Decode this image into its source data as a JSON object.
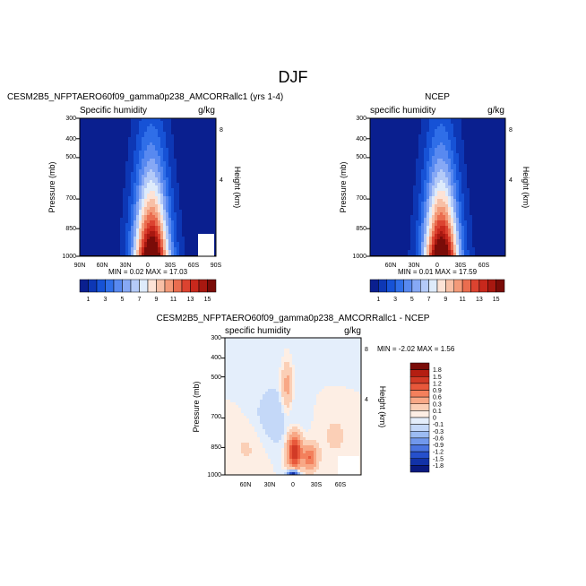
{
  "figure": {
    "title": "DJF",
    "diff_stats_text": "MIN =   -2.02   MAX =    1.56"
  },
  "chart_data": [
    {
      "id": "model",
      "type": "heatmap",
      "title": "CESM2B5_NFPTAERO60f09_gamma0p238_AMCORRallc1 (yrs 1-4)",
      "subtitle_left": "Specific humidity",
      "subtitle_right": "g/kg",
      "ylabel": "Pressure (mb)",
      "ylabel_right": "Height (km)",
      "yticks": [
        "300",
        "400",
        "500",
        "700",
        "850",
        "1000"
      ],
      "yticks_right": [
        "8",
        "4"
      ],
      "xticks": [
        "90N",
        "60N",
        "30N",
        "0",
        "30S",
        "60S",
        "90S"
      ],
      "stats_text": "MIN =    0.02   MAX =   17.03",
      "min": 0.02,
      "max": 17.03,
      "colorbar": {
        "colors": [
          "#0a1f8f",
          "#0d37b5",
          "#1652d6",
          "#2f6ee8",
          "#5889f0",
          "#86a8f5",
          "#b4caf8",
          "#deebfb",
          "#fde3d6",
          "#f8c0a6",
          "#f39a79",
          "#ea6d4f",
          "#dc4330",
          "#c8281c",
          "#a81810",
          "#7a0c08"
        ],
        "labels": [
          "1",
          "3",
          "5",
          "7",
          "9",
          "11",
          "13",
          "15"
        ]
      }
    },
    {
      "id": "ncep",
      "type": "heatmap",
      "title": "NCEP",
      "subtitle_left": "specific humidity",
      "subtitle_right": "g/kg",
      "ylabel": "Pressure (mb)",
      "ylabel_right": "Height (km)",
      "yticks": [
        "300",
        "400",
        "500",
        "700",
        "850",
        "1000"
      ],
      "yticks_right": [
        "8",
        "4"
      ],
      "xticks": [
        "60N",
        "30N",
        "0",
        "30S",
        "60S"
      ],
      "stats_text": "MIN =    0.01   MAX =   17.59",
      "min": 0.01,
      "max": 17.59,
      "colorbar": {
        "colors": [
          "#0a1f8f",
          "#0d37b5",
          "#1652d6",
          "#2f6ee8",
          "#5889f0",
          "#86a8f5",
          "#b4caf8",
          "#deebfb",
          "#fde3d6",
          "#f8c0a6",
          "#f39a79",
          "#ea6d4f",
          "#dc4330",
          "#c8281c",
          "#a81810",
          "#7a0c08"
        ],
        "labels": [
          "1",
          "3",
          "5",
          "7",
          "9",
          "11",
          "13",
          "15"
        ]
      }
    },
    {
      "id": "diff",
      "type": "heatmap",
      "title": "CESM2B5_NFPTAERO60f09_gamma0p238_AMCORRallc1 - NCEP",
      "subtitle_left": "specific humidity",
      "subtitle_right": "g/kg",
      "ylabel": "Pressure (mb)",
      "ylabel_right": "Height (km)",
      "yticks": [
        "300",
        "400",
        "500",
        "700",
        "850",
        "1000"
      ],
      "yticks_right": [
        "8",
        "4"
      ],
      "xticks": [
        "60N",
        "30N",
        "0",
        "30S",
        "60S"
      ],
      "min": -2.02,
      "max": 1.56,
      "colorbar": {
        "colors": [
          "#7a0c08",
          "#b41e12",
          "#d23a26",
          "#e8583b",
          "#f3805c",
          "#f8a886",
          "#fbcfb6",
          "#fdeee4",
          "#e4eefb",
          "#c4d8f8",
          "#9cbcf3",
          "#7198ec",
          "#4a74e0",
          "#2650cc",
          "#1232a8",
          "#0a1a80"
        ],
        "labels": [
          "1.8",
          "1.5",
          "1.2",
          "0.9",
          "0.6",
          "0.3",
          "0.1",
          "0",
          "-0.1",
          "-0.3",
          "-0.6",
          "-0.9",
          "-1.2",
          "-1.5",
          "-1.8"
        ]
      }
    }
  ]
}
